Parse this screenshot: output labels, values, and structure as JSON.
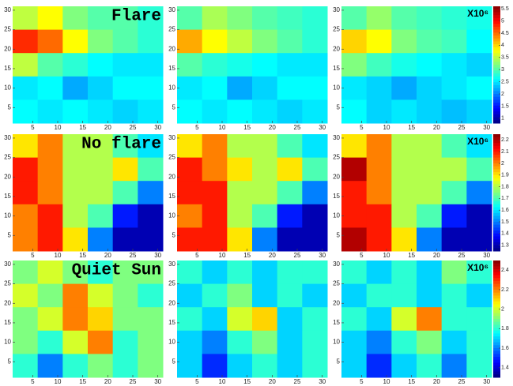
{
  "chart_data": [
    {
      "type": "heatmap",
      "title": "Flare",
      "colorbar_label": "X10⁶",
      "clim": [
        0.8,
        5.6
      ],
      "cticks": [
        1,
        1.5,
        2,
        2.5,
        3,
        3.5,
        4,
        4.5,
        5,
        5.5
      ],
      "xlim": [
        1,
        31
      ],
      "ylim": [
        1,
        31
      ],
      "xticks": [
        5,
        10,
        15,
        20,
        25,
        30
      ],
      "yticks": [
        5,
        10,
        15,
        20,
        25,
        30
      ],
      "panels": [
        {
          "values": [
            [
              3.5,
              3.8,
              3.2,
              3.0,
              3.0,
              2.8
            ],
            [
              4.8,
              4.5,
              3.8,
              3.2,
              3.0,
              2.8
            ],
            [
              3.5,
              3.0,
              2.8,
              2.6,
              2.5,
              2.5
            ],
            [
              2.5,
              2.6,
              2.2,
              2.4,
              2.6,
              2.6
            ],
            [
              2.6,
              2.5,
              2.6,
              2.5,
              2.4,
              2.5
            ]
          ]
        },
        {
          "values": [
            [
              3.0,
              3.4,
              3.2,
              3.0,
              2.9,
              2.8
            ],
            [
              4.2,
              3.8,
              3.5,
              3.2,
              3.0,
              2.8
            ],
            [
              3.0,
              2.8,
              2.7,
              2.6,
              2.5,
              2.5
            ],
            [
              2.5,
              2.6,
              2.2,
              2.4,
              2.6,
              2.6
            ],
            [
              2.6,
              2.5,
              2.6,
              2.5,
              2.4,
              2.5
            ]
          ]
        },
        {
          "values": [
            [
              3.0,
              3.3,
              3.0,
              2.9,
              2.8,
              2.7
            ],
            [
              4.0,
              3.8,
              3.2,
              3.0,
              2.9,
              2.6
            ],
            [
              3.2,
              2.9,
              2.7,
              2.6,
              2.5,
              2.4
            ],
            [
              2.5,
              2.4,
              2.2,
              2.4,
              2.5,
              2.6
            ],
            [
              2.6,
              2.4,
              2.5,
              2.4,
              2.3,
              2.4
            ]
          ]
        }
      ]
    },
    {
      "type": "heatmap",
      "title": "No flare",
      "colorbar_label": "X10⁶",
      "clim": [
        1.25,
        2.25
      ],
      "cticks": [
        1.3,
        1.4,
        1.5,
        1.6,
        1.7,
        1.8,
        1.9,
        2,
        2.1,
        2.2
      ],
      "xlim": [
        1,
        31
      ],
      "ylim": [
        1,
        31
      ],
      "xticks": [
        5,
        10,
        15,
        20,
        25,
        30
      ],
      "yticks": [
        5,
        10,
        15,
        20,
        25,
        30
      ],
      "panels": [
        {
          "values": [
            [
              1.9,
              2.0,
              1.8,
              1.8,
              1.7,
              1.6
            ],
            [
              2.1,
              2.0,
              1.8,
              1.8,
              1.9,
              1.7
            ],
            [
              2.1,
              2.0,
              1.8,
              1.8,
              1.7,
              1.5
            ],
            [
              2.0,
              2.1,
              1.8,
              1.7,
              1.4,
              1.3
            ],
            [
              2.0,
              2.1,
              1.9,
              1.5,
              1.3,
              1.3
            ]
          ]
        },
        {
          "values": [
            [
              1.9,
              2.0,
              1.8,
              1.8,
              1.7,
              1.6
            ],
            [
              2.1,
              2.0,
              1.9,
              1.8,
              1.9,
              1.7
            ],
            [
              2.1,
              2.1,
              1.8,
              1.8,
              1.7,
              1.5
            ],
            [
              2.0,
              2.1,
              1.8,
              1.7,
              1.4,
              1.3
            ],
            [
              2.1,
              2.1,
              1.9,
              1.5,
              1.3,
              1.3
            ]
          ]
        },
        {
          "values": [
            [
              1.9,
              2.0,
              1.8,
              1.8,
              1.7,
              1.6
            ],
            [
              2.2,
              2.0,
              1.8,
              1.8,
              1.8,
              1.7
            ],
            [
              2.1,
              2.0,
              1.8,
              1.8,
              1.7,
              1.5
            ],
            [
              2.1,
              2.1,
              1.8,
              1.7,
              1.4,
              1.3
            ],
            [
              2.2,
              2.1,
              1.9,
              1.5,
              1.3,
              1.3
            ]
          ]
        }
      ]
    },
    {
      "type": "heatmap",
      "title": "Quiet Sun",
      "colorbar_label": "X10⁶",
      "clim": [
        1.3,
        2.5
      ],
      "cticks": [
        1.4,
        1.6,
        1.8,
        2,
        2.2,
        2.4
      ],
      "xlim": [
        1,
        31
      ],
      "ylim": [
        1,
        31
      ],
      "xticks": [
        5,
        10,
        15,
        20,
        25,
        30
      ],
      "yticks": [
        5,
        10,
        15,
        20,
        25,
        30
      ],
      "panels": [
        {
          "values": [
            [
              1.9,
              2.0,
              1.9,
              1.8,
              1.9,
              1.9
            ],
            [
              2.0,
              1.9,
              2.2,
              2.0,
              1.9,
              1.8
            ],
            [
              1.9,
              2.0,
              2.2,
              2.1,
              1.9,
              1.9
            ],
            [
              1.9,
              1.8,
              2.0,
              2.2,
              1.8,
              1.9
            ],
            [
              1.8,
              1.6,
              1.8,
              1.9,
              1.8,
              1.9
            ]
          ]
        },
        {
          "values": [
            [
              1.8,
              1.7,
              1.8,
              1.7,
              1.8,
              1.8
            ],
            [
              1.7,
              1.8,
              1.9,
              1.7,
              1.8,
              1.7
            ],
            [
              1.8,
              1.7,
              2.0,
              2.1,
              1.7,
              1.8
            ],
            [
              1.7,
              1.6,
              1.8,
              1.9,
              1.7,
              1.8
            ],
            [
              1.7,
              1.5,
              1.7,
              1.8,
              1.7,
              1.8
            ]
          ]
        },
        {
          "values": [
            [
              1.8,
              1.7,
              1.8,
              1.7,
              1.9,
              1.8
            ],
            [
              1.7,
              1.8,
              1.8,
              1.7,
              1.8,
              1.7
            ],
            [
              1.8,
              1.7,
              2.0,
              2.2,
              1.8,
              1.8
            ],
            [
              1.7,
              1.6,
              1.8,
              1.9,
              1.7,
              1.8
            ],
            [
              1.7,
              1.5,
              1.7,
              1.8,
              1.6,
              1.8
            ]
          ]
        }
      ]
    }
  ]
}
